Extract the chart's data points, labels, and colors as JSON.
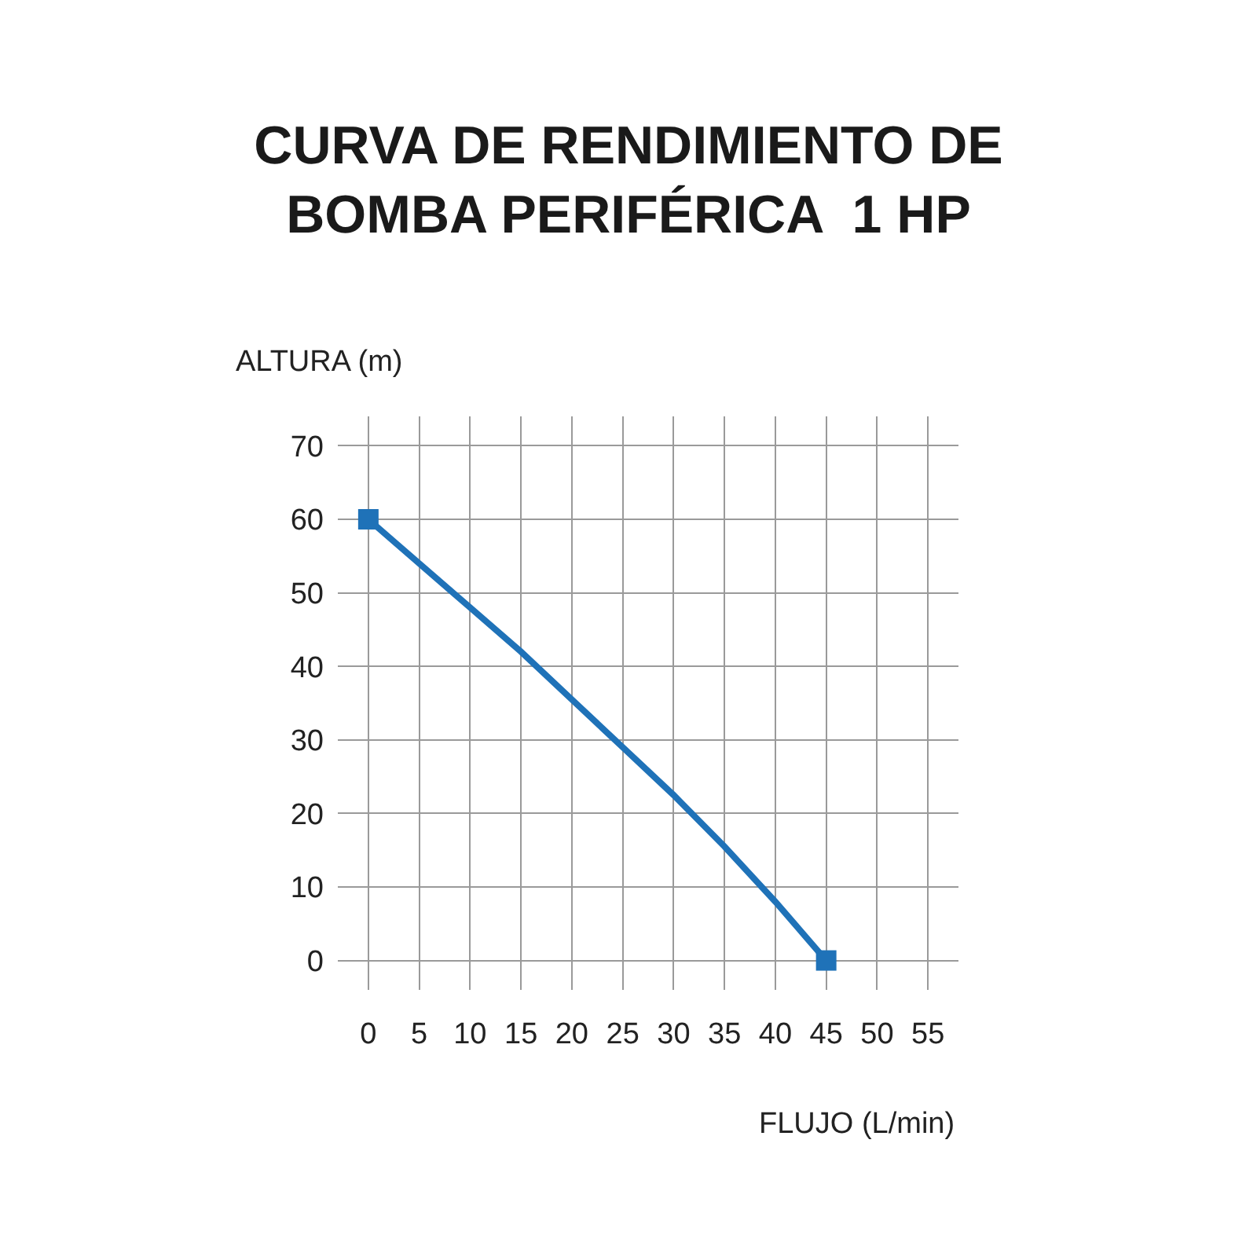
{
  "chart_data": {
    "type": "line",
    "title": "CURVA DE RENDIMIENTO DE\nBOMBA PERIFÉRICA  1 HP",
    "xlabel": "FLUJO (L/min)",
    "ylabel": "ALTURA (m)",
    "xlim": [
      -3,
      58
    ],
    "ylim": [
      -4,
      74
    ],
    "xticks": [
      0,
      5,
      10,
      15,
      20,
      25,
      30,
      35,
      40,
      45,
      50,
      55
    ],
    "yticks": [
      0,
      10,
      20,
      30,
      40,
      50,
      60,
      70
    ],
    "grid": true,
    "series": [
      {
        "color": "#1f72b8",
        "marker": "none",
        "line_style": "solid",
        "x": [
          0,
          10,
          15,
          20,
          25,
          30,
          35,
          40,
          45
        ],
        "values": [
          60,
          48,
          42,
          35.5,
          29,
          22.5,
          15.5,
          8,
          0
        ]
      },
      {
        "type": "scatter",
        "color": "#1f72b8",
        "marker": "square",
        "x": [
          0,
          45
        ],
        "values": [
          60,
          0
        ]
      }
    ]
  }
}
